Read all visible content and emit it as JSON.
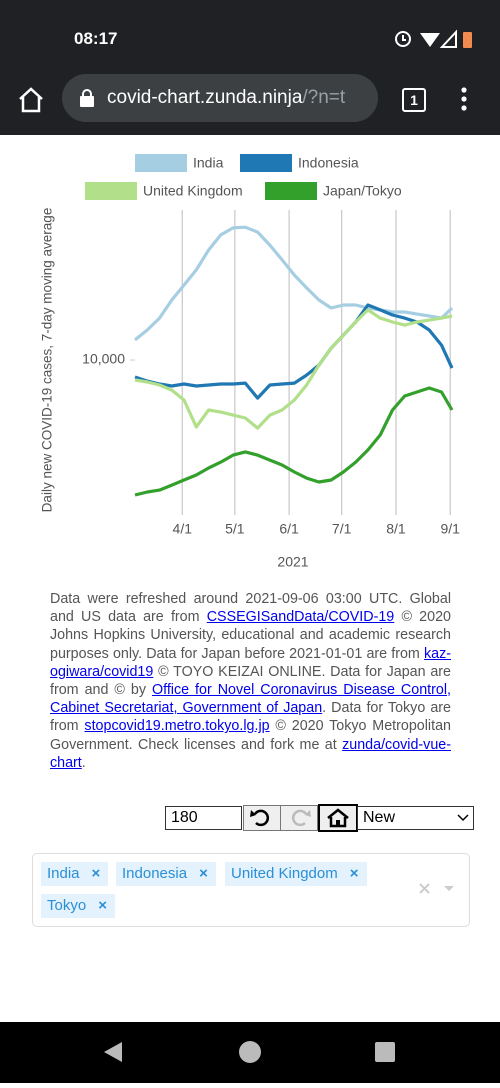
{
  "status_bar": {
    "time": "08:17"
  },
  "browser": {
    "url_host": "covid-chart.zunda.ninja",
    "url_path": "/?n=t",
    "tab_count": 1
  },
  "chart_data": {
    "type": "line",
    "ylabel": "Daily new COVID-19 cases, 7-day moving average",
    "xlabel": "2021",
    "x": [
      "3/5",
      "3/12",
      "3/19",
      "3/26",
      "4/2",
      "4/9",
      "4/16",
      "4/23",
      "4/30",
      "5/7",
      "5/14",
      "5/21",
      "5/28",
      "6/4",
      "6/11",
      "6/18",
      "6/25",
      "7/2",
      "7/9",
      "7/16",
      "7/23",
      "7/30",
      "8/6",
      "8/13",
      "8/20",
      "8/27",
      "9/2"
    ],
    "xlim": [
      "3/5",
      "9/2"
    ],
    "xticks": [
      "4/1",
      "5/1",
      "6/1",
      "7/1",
      "8/1",
      "9/1"
    ],
    "ylim": [
      160,
      626000
    ],
    "yticks": [
      {
        "value": 10000,
        "label": "10,000"
      }
    ],
    "log_scale": true,
    "grid": true,
    "series": [
      {
        "name": "India",
        "color": "#a6cee3",
        "values": [
          17400,
          22900,
          31800,
          52300,
          79000,
          120000,
          208000,
          315000,
          382000,
          390000,
          340000,
          238000,
          158000,
          104000,
          73000,
          52300,
          42000,
          45600,
          45600,
          42000,
          39800,
          37600,
          37600,
          35500,
          33700,
          31800,
          42000
        ]
      },
      {
        "name": "Indonesia",
        "color": "#1f78b4",
        "values": [
          6260,
          5600,
          5160,
          4890,
          5160,
          4890,
          5020,
          5160,
          5160,
          5300,
          3500,
          5020,
          5160,
          5300,
          6600,
          8700,
          13900,
          19900,
          28500,
          45600,
          39800,
          34600,
          31800,
          28500,
          22900,
          15100,
          8000
        ]
      },
      {
        "name": "United Kingdom",
        "color": "#b2df8a",
        "values": [
          5760,
          5450,
          5020,
          4370,
          3320,
          1580,
          2520,
          2380,
          2190,
          2020,
          1530,
          2190,
          2520,
          3320,
          5020,
          8700,
          13900,
          19900,
          28500,
          39800,
          31800,
          28500,
          26200,
          28500,
          30100,
          31800,
          33700
        ]
      },
      {
        "name": "Japan/Tokyo",
        "color": "#33a02c",
        "values": [
          242,
          263,
          277,
          318,
          366,
          420,
          509,
          600,
          728,
          793,
          728,
          634,
          553,
          456,
          386,
          346,
          366,
          456,
          600,
          836,
          1264,
          2520,
          3710,
          4140,
          4620,
          4140,
          2520
        ]
      }
    ]
  },
  "notice": [
    {
      "text": "Data were refreshed around 2021-09-06 03:00 UTC. Global and US data are from "
    },
    {
      "text": "CSSEGISandData/COVID-19",
      "link": true
    },
    {
      "text": " © 2020 Johns Hopkins University, educational and academic research purposes only. Data for Japan before 2021-01-01 are from "
    },
    {
      "text": "kaz-ogiwara/covid19",
      "link": true
    },
    {
      "text": " © TOYO KEIZAI ONLINE. Data for Japan are from and © by "
    },
    {
      "text": "Office for Novel Coronavirus Disease Control, Cabinet Secretariat, Government of Japan",
      "link": true
    },
    {
      "text": ". Data for Tokyo are from "
    },
    {
      "text": "stopcovid19.metro.tokyo.lg.jp",
      "link": true
    },
    {
      "text": " © 2020 Tokyo Metropolitan Government. Check licenses and fork me at "
    },
    {
      "text": "zunda/covid-vue-chart",
      "link": true
    },
    {
      "text": "."
    }
  ],
  "controls": {
    "days": "180",
    "mode": "New"
  },
  "selected": [
    "India",
    "Indonesia",
    "United Kingdom",
    "Tokyo"
  ]
}
